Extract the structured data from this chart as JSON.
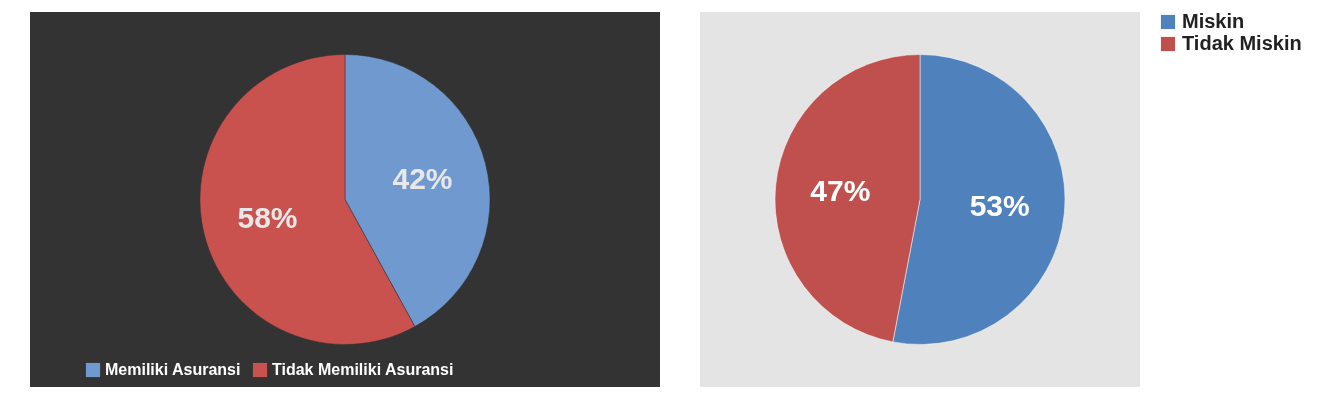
{
  "chart_data": [
    {
      "type": "pie",
      "categories": [
        "Memiliki Asuransi",
        "Tidak Memiliki Asuransi"
      ],
      "values": [
        42,
        58
      ],
      "colors": [
        "#7099d0",
        "#c9524f"
      ],
      "value_labels": [
        "42%",
        "58%"
      ],
      "legend": "bottom"
    },
    {
      "type": "pie",
      "categories": [
        "Miskin",
        "Tidak Miskin"
      ],
      "values": [
        53,
        47
      ],
      "colors": [
        "#4f81bd",
        "#c0504d"
      ],
      "value_labels": [
        "53%",
        "47%"
      ],
      "legend": "right"
    }
  ]
}
